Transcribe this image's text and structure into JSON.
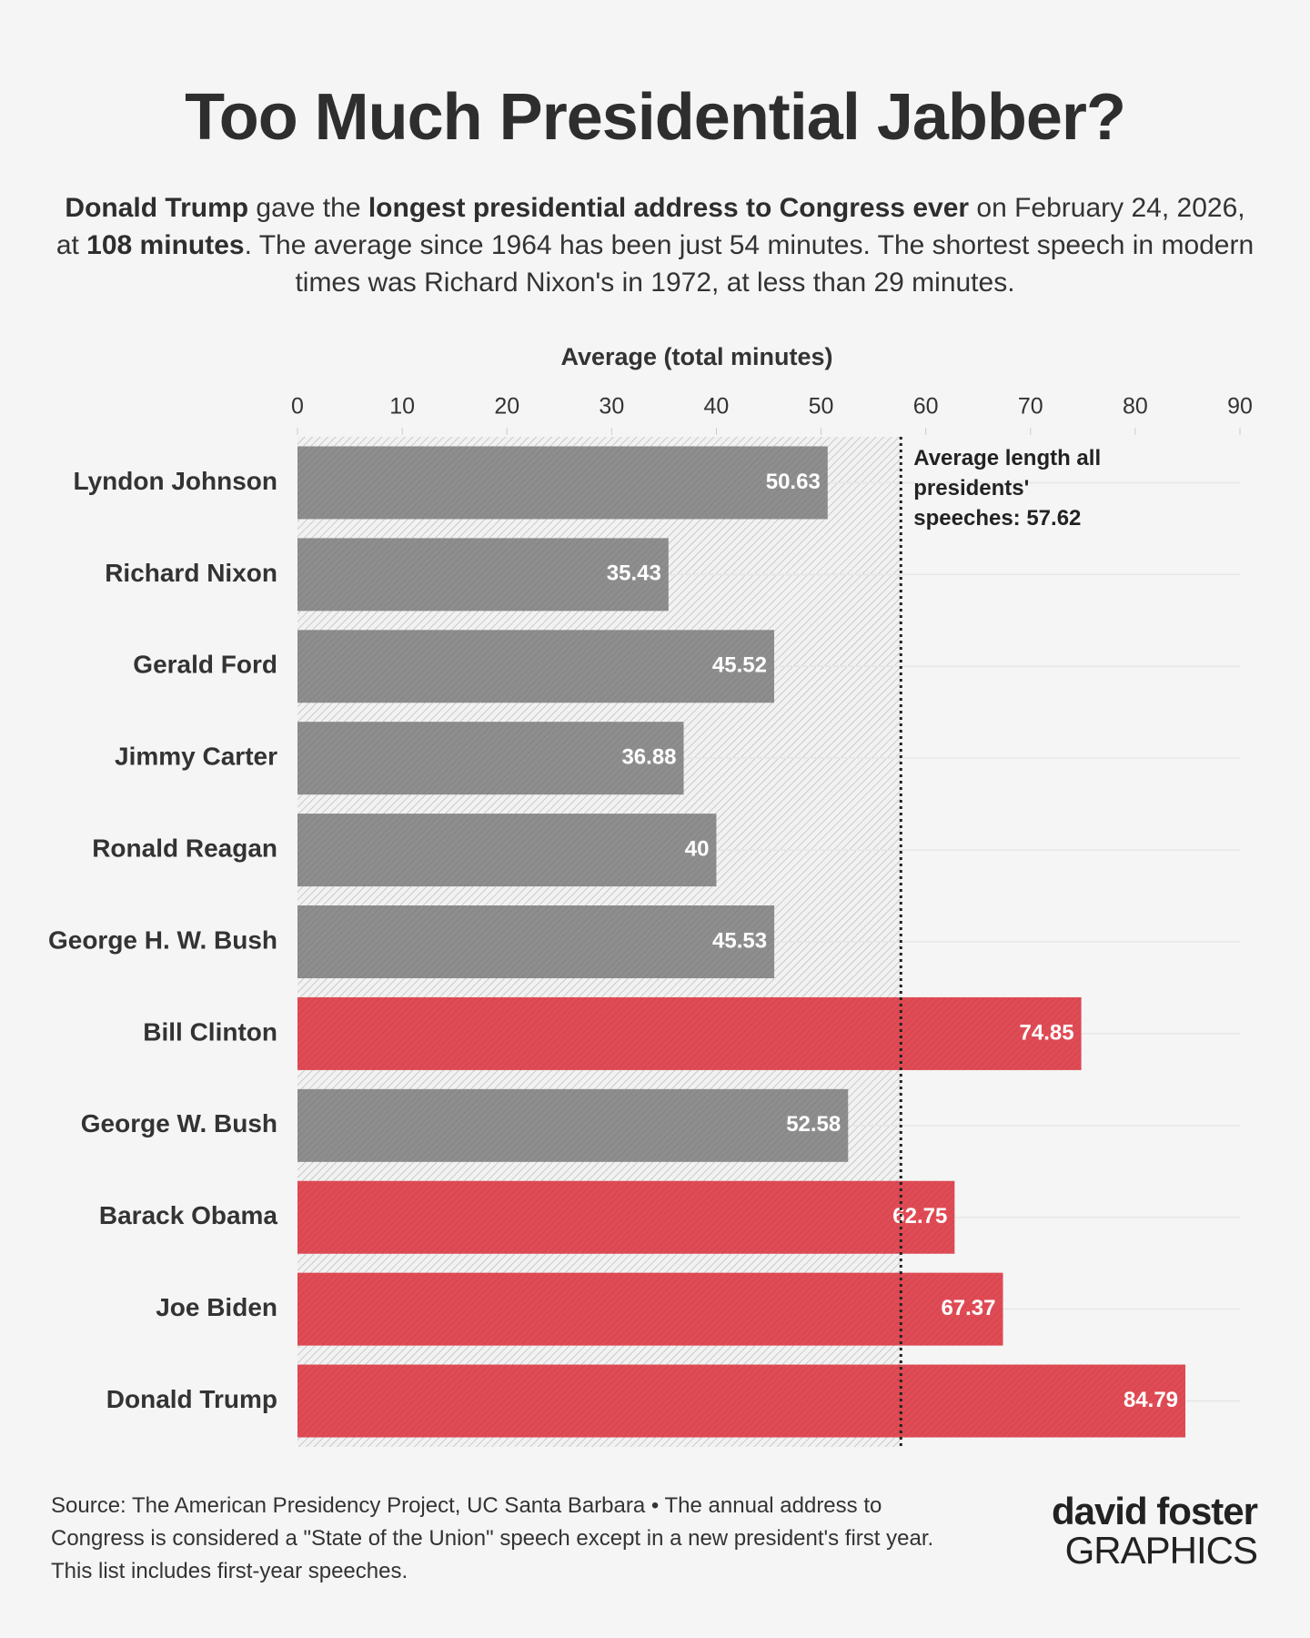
{
  "chart_data": {
    "type": "bar",
    "orientation": "horizontal",
    "title": "Too Much Presidential Jabber?",
    "subtitle": [
      {
        "text": "Donald Trump",
        "bold": true
      },
      {
        "text": " gave the ",
        "bold": false
      },
      {
        "text": "longest presidential address to Congress ever",
        "bold": true
      },
      {
        "text": " on February 24, 2026, at ",
        "bold": false
      },
      {
        "text": "108 minutes",
        "bold": true
      },
      {
        "text": ". The average since 1964 has been just 54 minutes. The shortest speech in modern times was Richard Nixon's in 1972, at less than 29 minutes.",
        "bold": false
      }
    ],
    "x_label": "Average (total minutes)",
    "categories": [
      "Lyndon Johnson",
      "Richard Nixon",
      "Gerald Ford",
      "Jimmy Carter",
      "Ronald Reagan",
      "George H. W. Bush",
      "Bill Clinton",
      "George W. Bush",
      "Barack Obama",
      "Joe Biden",
      "Donald Trump"
    ],
    "values": [
      50.63,
      35.43,
      45.52,
      36.88,
      40,
      45.53,
      74.85,
      52.58,
      62.75,
      67.37,
      84.79
    ],
    "colors": [
      "#8e8e8e",
      "#8e8e8e",
      "#8e8e8e",
      "#8e8e8e",
      "#8e8e8e",
      "#8e8e8e",
      "#e04b55",
      "#8e8e8e",
      "#e04b55",
      "#e04b55",
      "#e04b55"
    ],
    "xlim": [
      0,
      90
    ],
    "xticks": [
      0,
      10,
      20,
      30,
      40,
      50,
      60,
      70,
      80,
      90
    ],
    "reference_line": {
      "value": 57.62,
      "label": "Average length all presidents' speeches: 57.62"
    },
    "source": "Source: The American Presidency Project, UC Santa Barbara • The annual address to Congress is considered a \"State of the Union\" speech except in a new president's first year. This list includes first-year speeches.",
    "logo": [
      "david foster",
      "GRAPHICS"
    ]
  }
}
